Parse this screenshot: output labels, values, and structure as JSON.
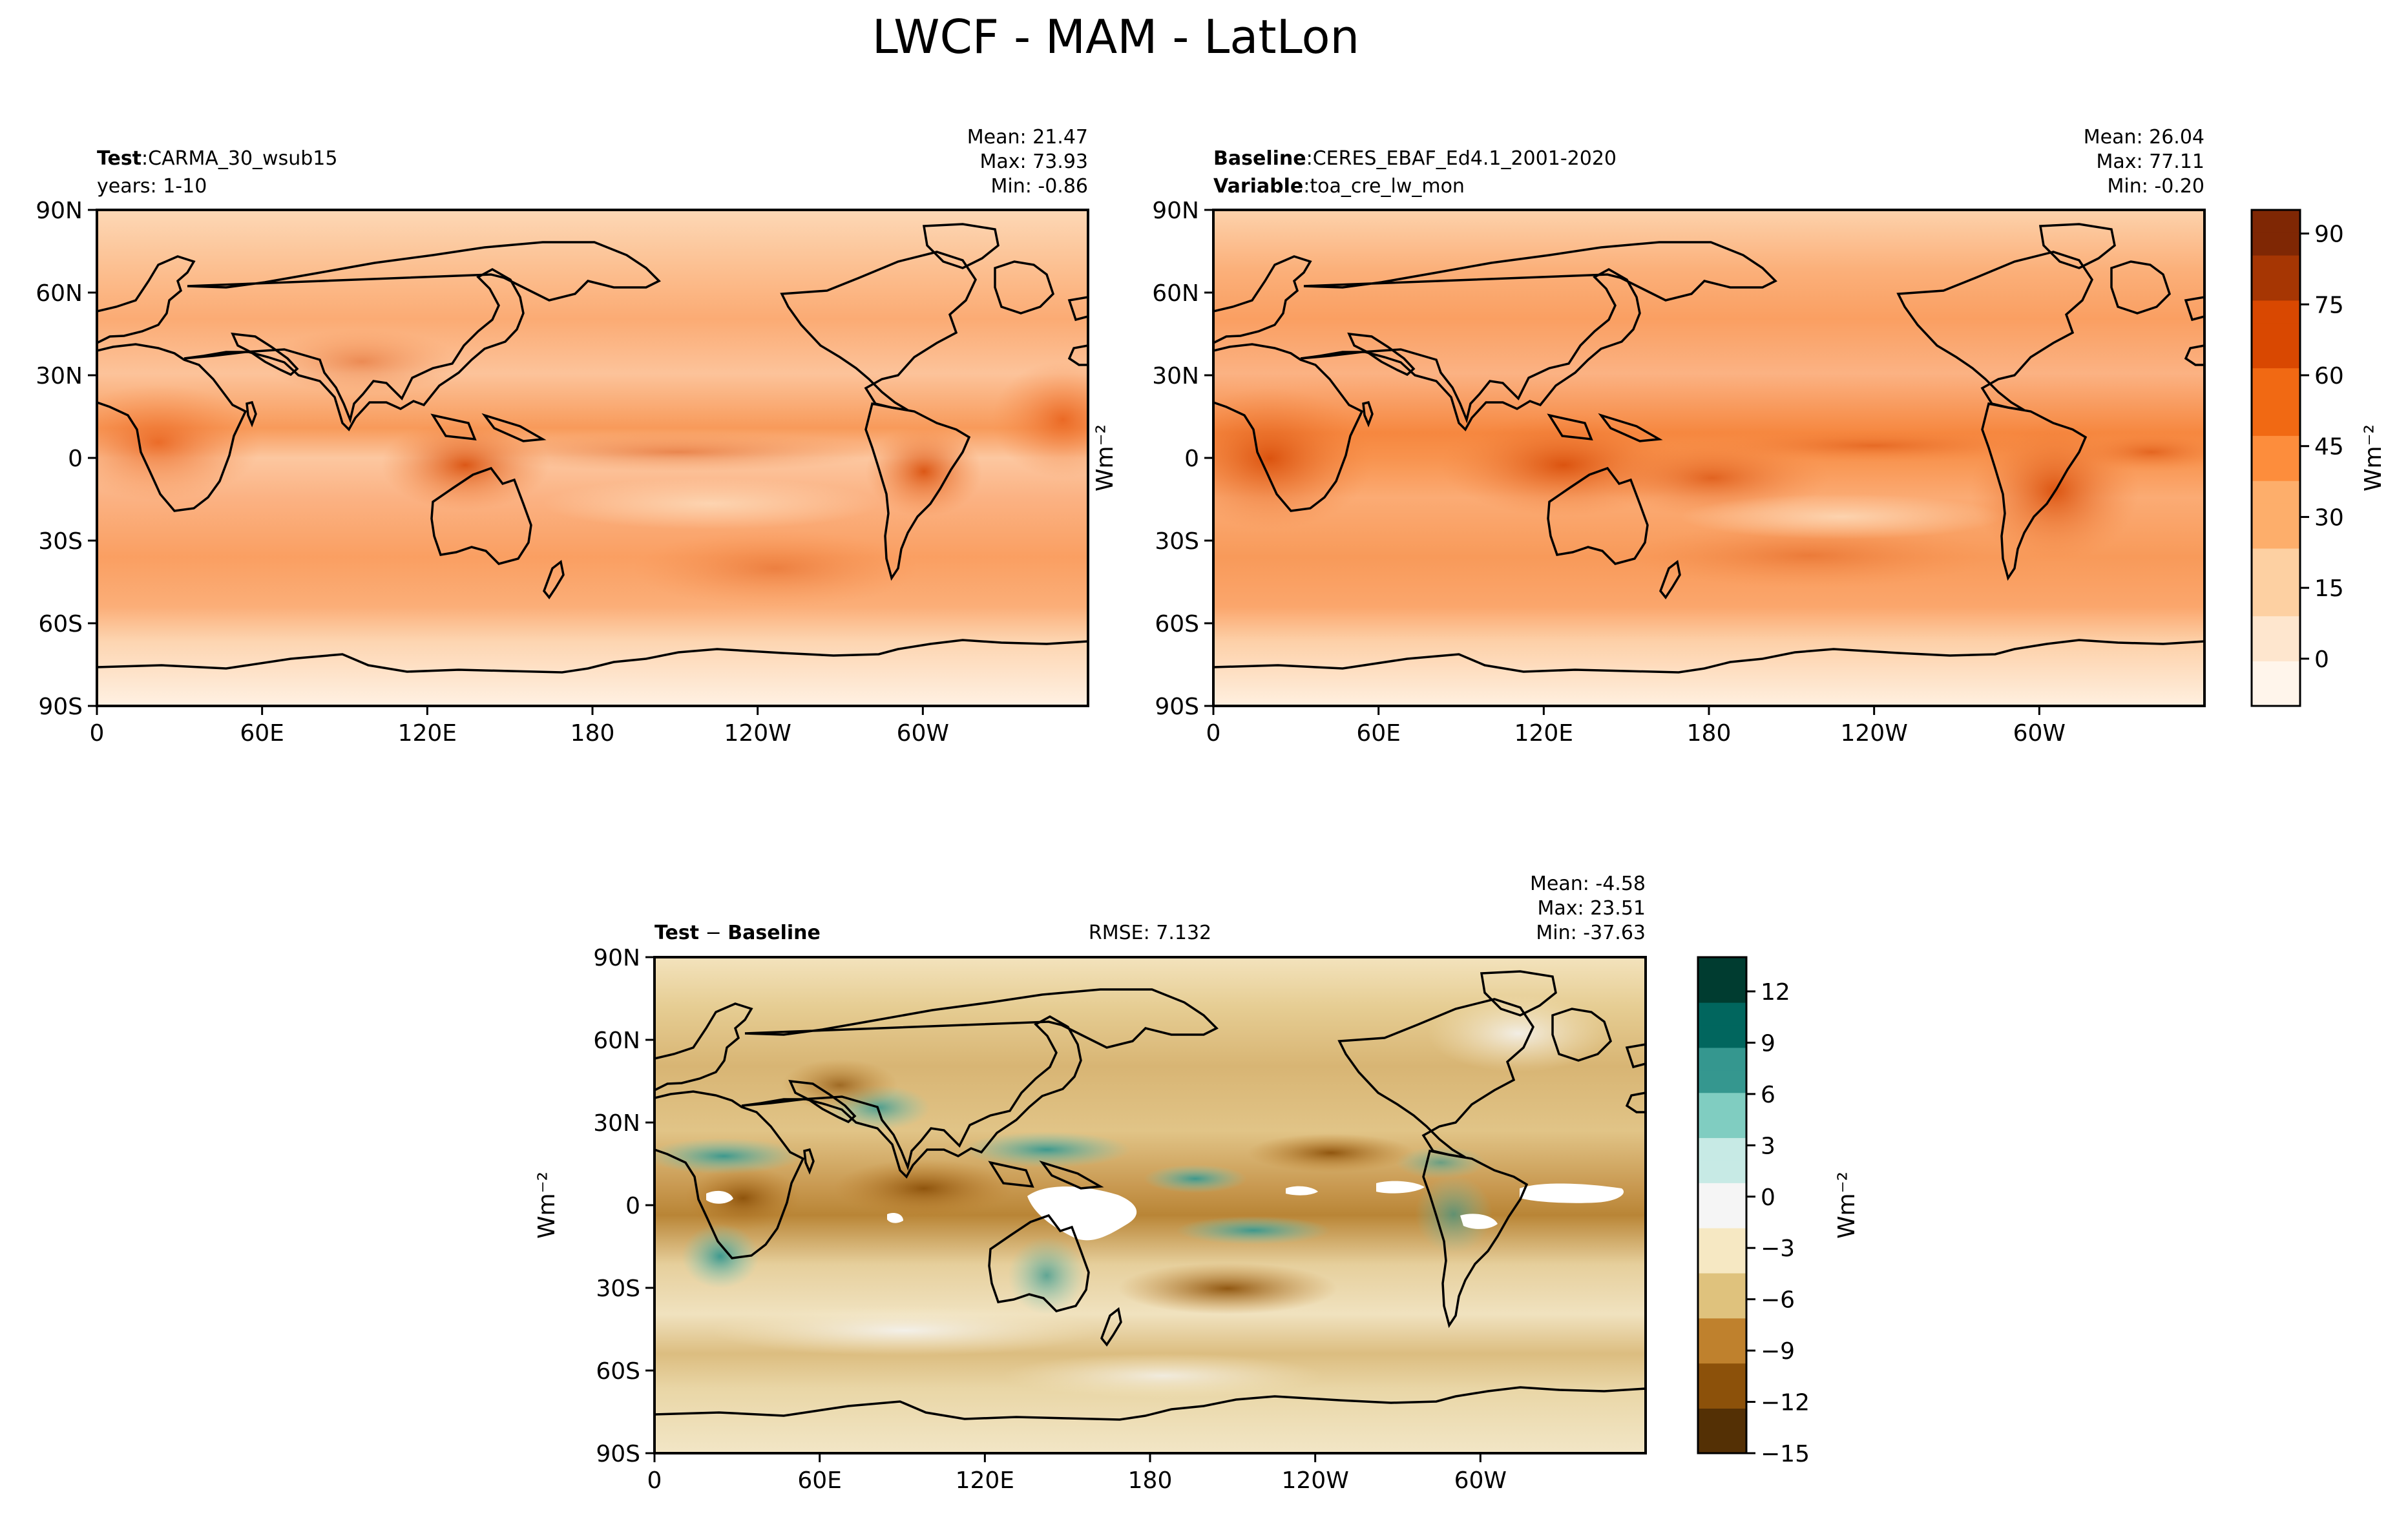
{
  "suptitle": "LWCF - MAM - LatLon",
  "lat_ticks": [
    "90N",
    "60N",
    "30N",
    "0",
    "30S",
    "60S",
    "90S"
  ],
  "lon_ticks": [
    "0",
    "60E",
    "120E",
    "180",
    "120W",
    "60W"
  ],
  "panels": {
    "test": {
      "label_bold": "Test",
      "label_sep": ":",
      "label_text": "CARMA_30_wsub15",
      "line2": "years: 1-10",
      "mean": "Mean: 21.47",
      "max": "Max: 73.93",
      "min": "Min: -0.86"
    },
    "baseline": {
      "label_bold": "Baseline",
      "label_sep": ":",
      "label_text": "CERES_EBAF_Ed4.1_2001-2020",
      "line2_bold": "Variable",
      "line2_sep": ":",
      "line2_text": "toa_cre_lw_mon",
      "mean": "Mean: 26.04",
      "max": "Max: 77.11",
      "min": "Min: -0.20"
    },
    "diff": {
      "label_bold_1": "Test",
      "label_sep": " − ",
      "label_bold_2": "Baseline",
      "rmse": "RMSE: 7.132",
      "mean": "Mean: -4.58",
      "max": "Max: 23.51",
      "min": "Min: -37.63"
    }
  },
  "colorbars": {
    "main": {
      "unit": "Wm⁻²",
      "colormap": "Oranges",
      "ticks": [
        "90",
        "75",
        "60",
        "45",
        "30",
        "15",
        "0"
      ],
      "tick_values": [
        90,
        75,
        60,
        45,
        30,
        15,
        0
      ],
      "range": [
        -10,
        95
      ],
      "colors": [
        "#fff5eb",
        "#fee6ce",
        "#fdd0a2",
        "#fdae6b",
        "#fd8d3c",
        "#f16913",
        "#d94801",
        "#a63603",
        "#7f2704"
      ]
    },
    "diff": {
      "unit": "Wm⁻²",
      "colormap": "BrBG",
      "ticks": [
        "12",
        "9",
        "6",
        "3",
        "0",
        "−3",
        "−6",
        "−9",
        "−12",
        "−15"
      ],
      "tick_values": [
        12,
        9,
        6,
        3,
        0,
        -3,
        -6,
        -9,
        -12,
        -15
      ],
      "range": [
        -15,
        14
      ],
      "colors": [
        "#543005",
        "#8c510a",
        "#bf812d",
        "#dfc27d",
        "#f6e8c3",
        "#f5f5f5",
        "#c7eae5",
        "#80cdc1",
        "#35978f",
        "#01665e",
        "#003c30"
      ]
    }
  }
}
